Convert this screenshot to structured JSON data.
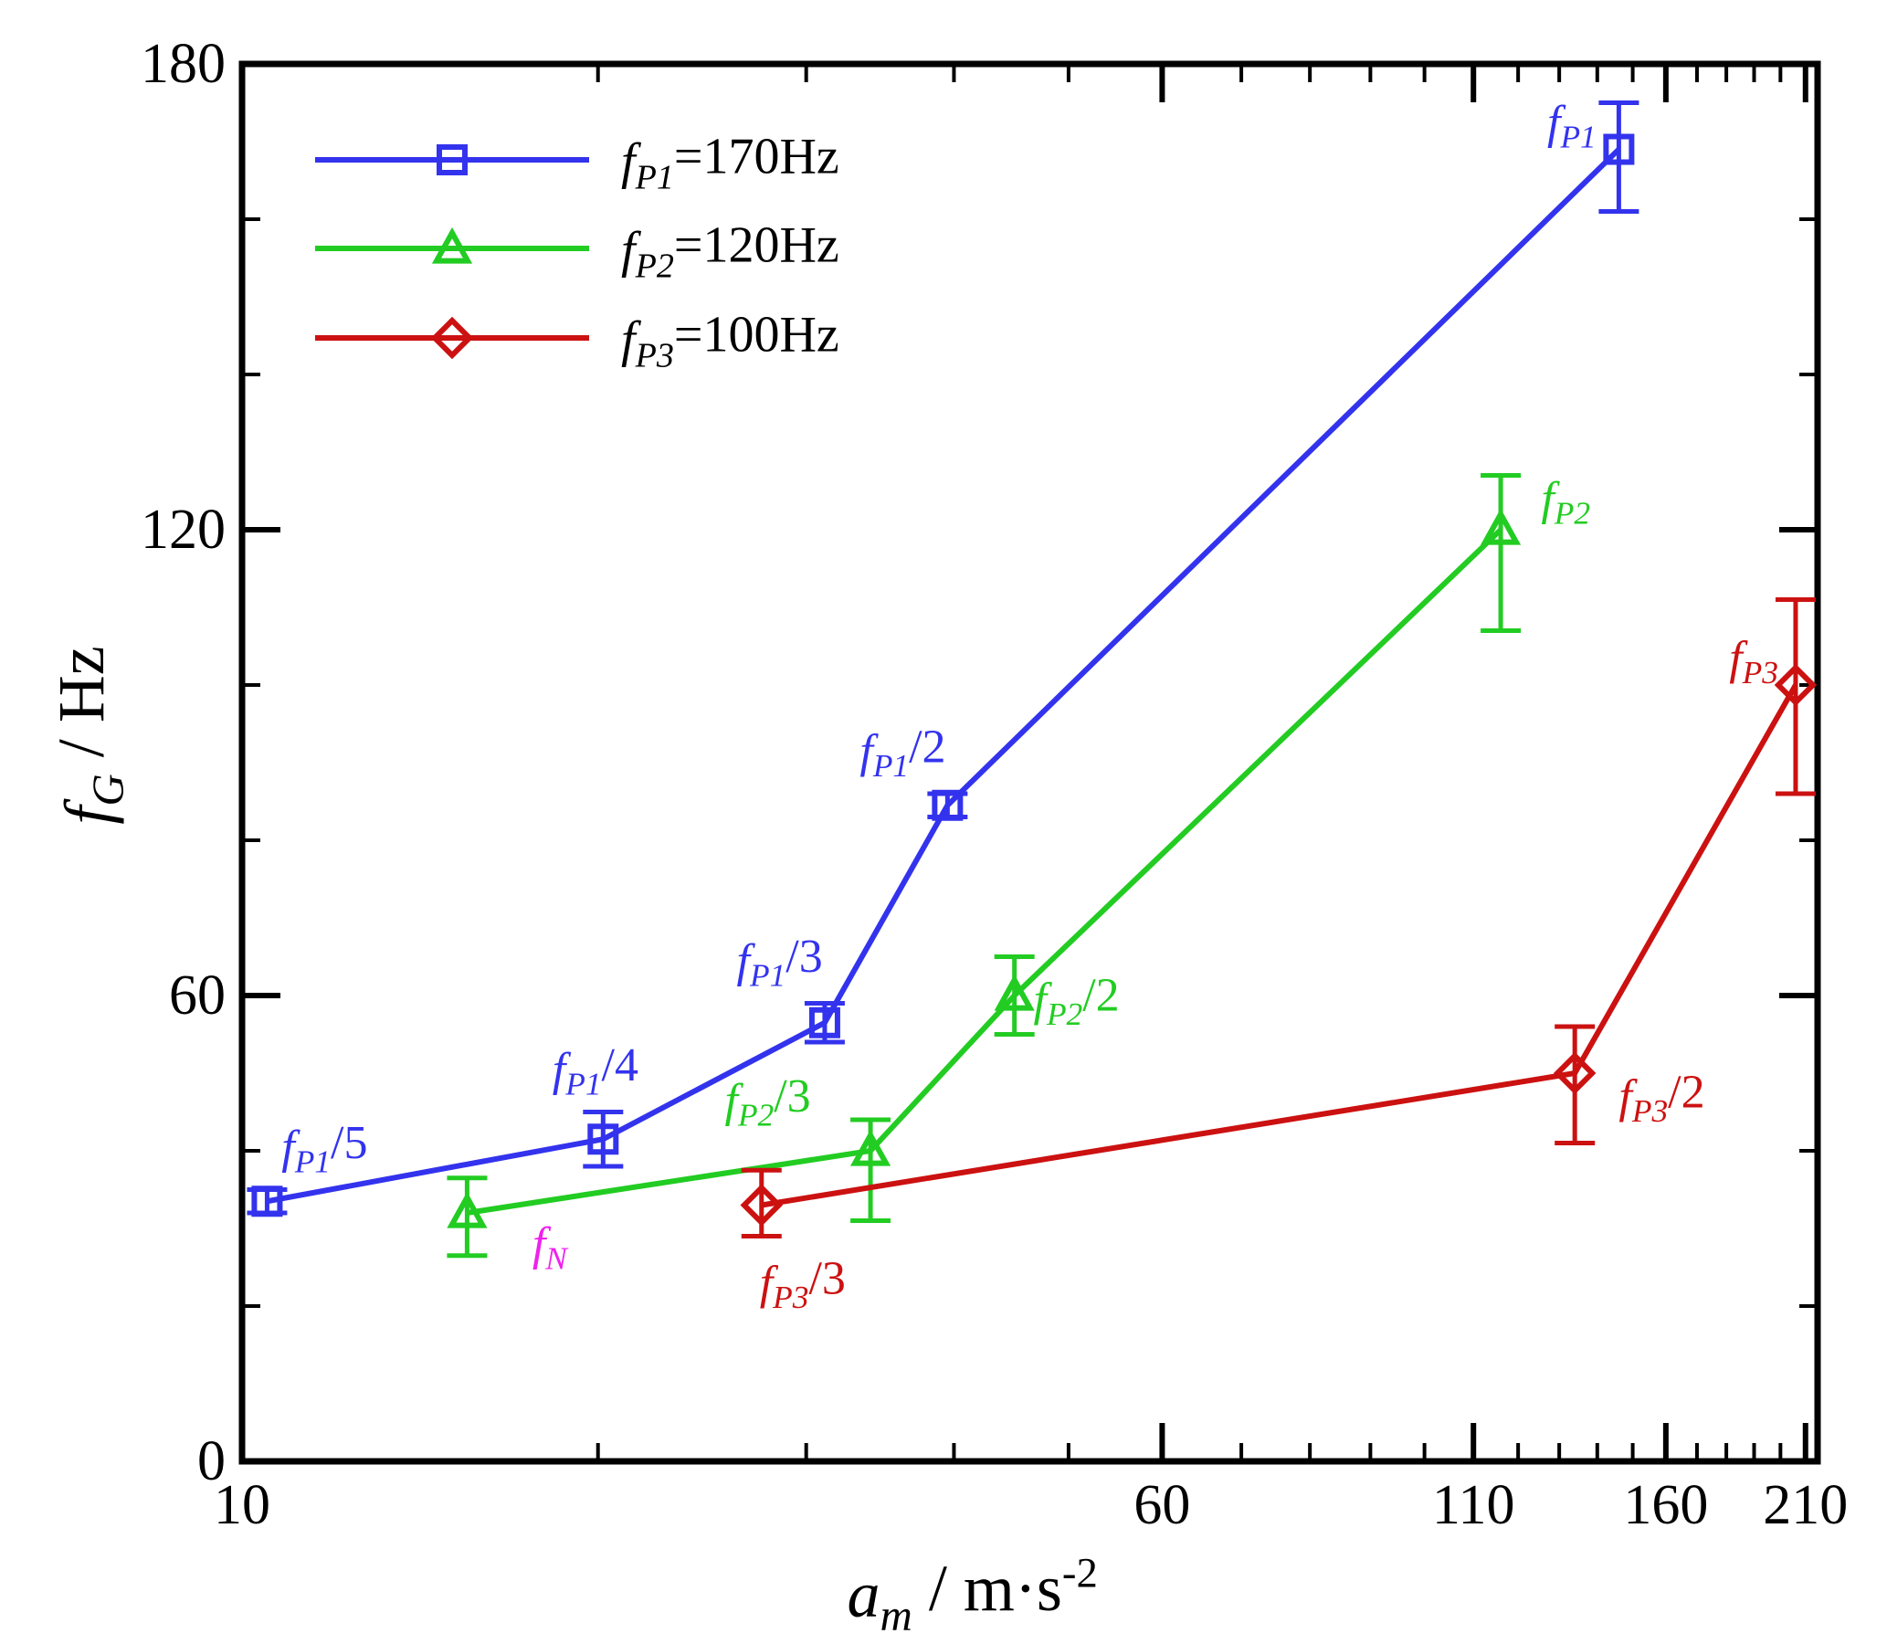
{
  "chart_data": {
    "type": "line",
    "title": "",
    "xlabel": {
      "main": "a",
      "sub": "m",
      "unit": " / m·s",
      "sup": "-2"
    },
    "ylabel": {
      "main": "f",
      "sub": "G",
      "unit": " / Hz"
    },
    "xscale": "log",
    "xlim": [
      10,
      215
    ],
    "ylim": [
      0,
      180
    ],
    "xticks_major": [
      10,
      60,
      110,
      160,
      210
    ],
    "xtick_labels": [
      "10",
      "60",
      "110",
      "160",
      "210"
    ],
    "yticks_major": [
      0,
      60,
      120,
      180
    ],
    "ytick_labels": [
      "0",
      "60",
      "120",
      "180"
    ],
    "yticks_minor": [
      20,
      40,
      80,
      100,
      140,
      160
    ],
    "xticks_minor": [
      20,
      30,
      40,
      50,
      70,
      80,
      90,
      100,
      120,
      130,
      140,
      150,
      170,
      180,
      190,
      200
    ],
    "legend_position": "top-left",
    "series": [
      {
        "name": "f_P1=170Hz",
        "legend": {
          "main": "f",
          "sub": "P1",
          "rest": "=170Hz"
        },
        "color": "#3333ee",
        "marker": "square",
        "x": [
          10.5,
          20.2,
          31.1,
          39.5,
          146
        ],
        "y": [
          33.5,
          41.5,
          56.5,
          84.5,
          169
        ],
        "err_low": [
          1.5,
          3.5,
          2.5,
          1.5,
          8
        ],
        "err_high": [
          1.5,
          3.5,
          2.5,
          1.5,
          6
        ]
      },
      {
        "name": "f_P2=120Hz",
        "legend": {
          "main": "f",
          "sub": "P2",
          "rest": "=120Hz"
        },
        "color": "#22cc22",
        "marker": "triangle",
        "x": [
          15.5,
          34,
          45,
          116
        ],
        "y": [
          32,
          40,
          60,
          120
        ],
        "err_low": [
          5.5,
          9,
          5,
          13
        ],
        "err_high": [
          4.5,
          4,
          5,
          7
        ]
      },
      {
        "name": "f_P3=100Hz",
        "legend": {
          "main": "f",
          "sub": "P3",
          "rest": "=100Hz"
        },
        "color": "#cc1111",
        "marker": "diamond",
        "x": [
          27.5,
          134,
          206
        ],
        "y": [
          33,
          50,
          100
        ],
        "err_low": [
          4,
          9,
          14
        ],
        "err_high": [
          4.5,
          6,
          11
        ]
      }
    ],
    "annotations": [
      {
        "main": "f",
        "sub": "P1",
        "rest": "",
        "color": "#3333ee",
        "x": 127,
        "y": 170.5
      },
      {
        "main": "f",
        "sub": "P1",
        "rest": "/2",
        "color": "#3333ee",
        "x": 33.3,
        "y": 89.5
      },
      {
        "main": "f",
        "sub": "P1",
        "rest": "/3",
        "color": "#3333ee",
        "x": 26.2,
        "y": 62.5
      },
      {
        "main": "f",
        "sub": "P1",
        "rest": "/4",
        "color": "#3333ee",
        "x": 18.3,
        "y": 48.5
      },
      {
        "main": "f",
        "sub": "P1",
        "rest": "/5",
        "color": "#3333ee",
        "x": 10.8,
        "y": 38.5
      },
      {
        "main": "f",
        "sub": "P2",
        "rest": "",
        "color": "#22cc22",
        "x": 125.5,
        "y": 122
      },
      {
        "main": "f",
        "sub": "P2",
        "rest": "/2",
        "color": "#22cc22",
        "x": 46.7,
        "y": 57.5
      },
      {
        "main": "f",
        "sub": "P2",
        "rest": "/3",
        "color": "#22cc22",
        "x": 25.6,
        "y": 44.5
      },
      {
        "main": "f",
        "sub": "N",
        "rest": "",
        "color": "#ee22ee",
        "x": 17.6,
        "y": 26
      },
      {
        "main": "f",
        "sub": "P3",
        "rest": "",
        "color": "#cc1111",
        "x": 181,
        "y": 101.5
      },
      {
        "main": "f",
        "sub": "P3",
        "rest": "/2",
        "color": "#cc1111",
        "x": 146,
        "y": 45
      },
      {
        "main": "f",
        "sub": "P3",
        "rest": "/3",
        "color": "#cc1111",
        "x": 27.4,
        "y": 21
      }
    ]
  }
}
